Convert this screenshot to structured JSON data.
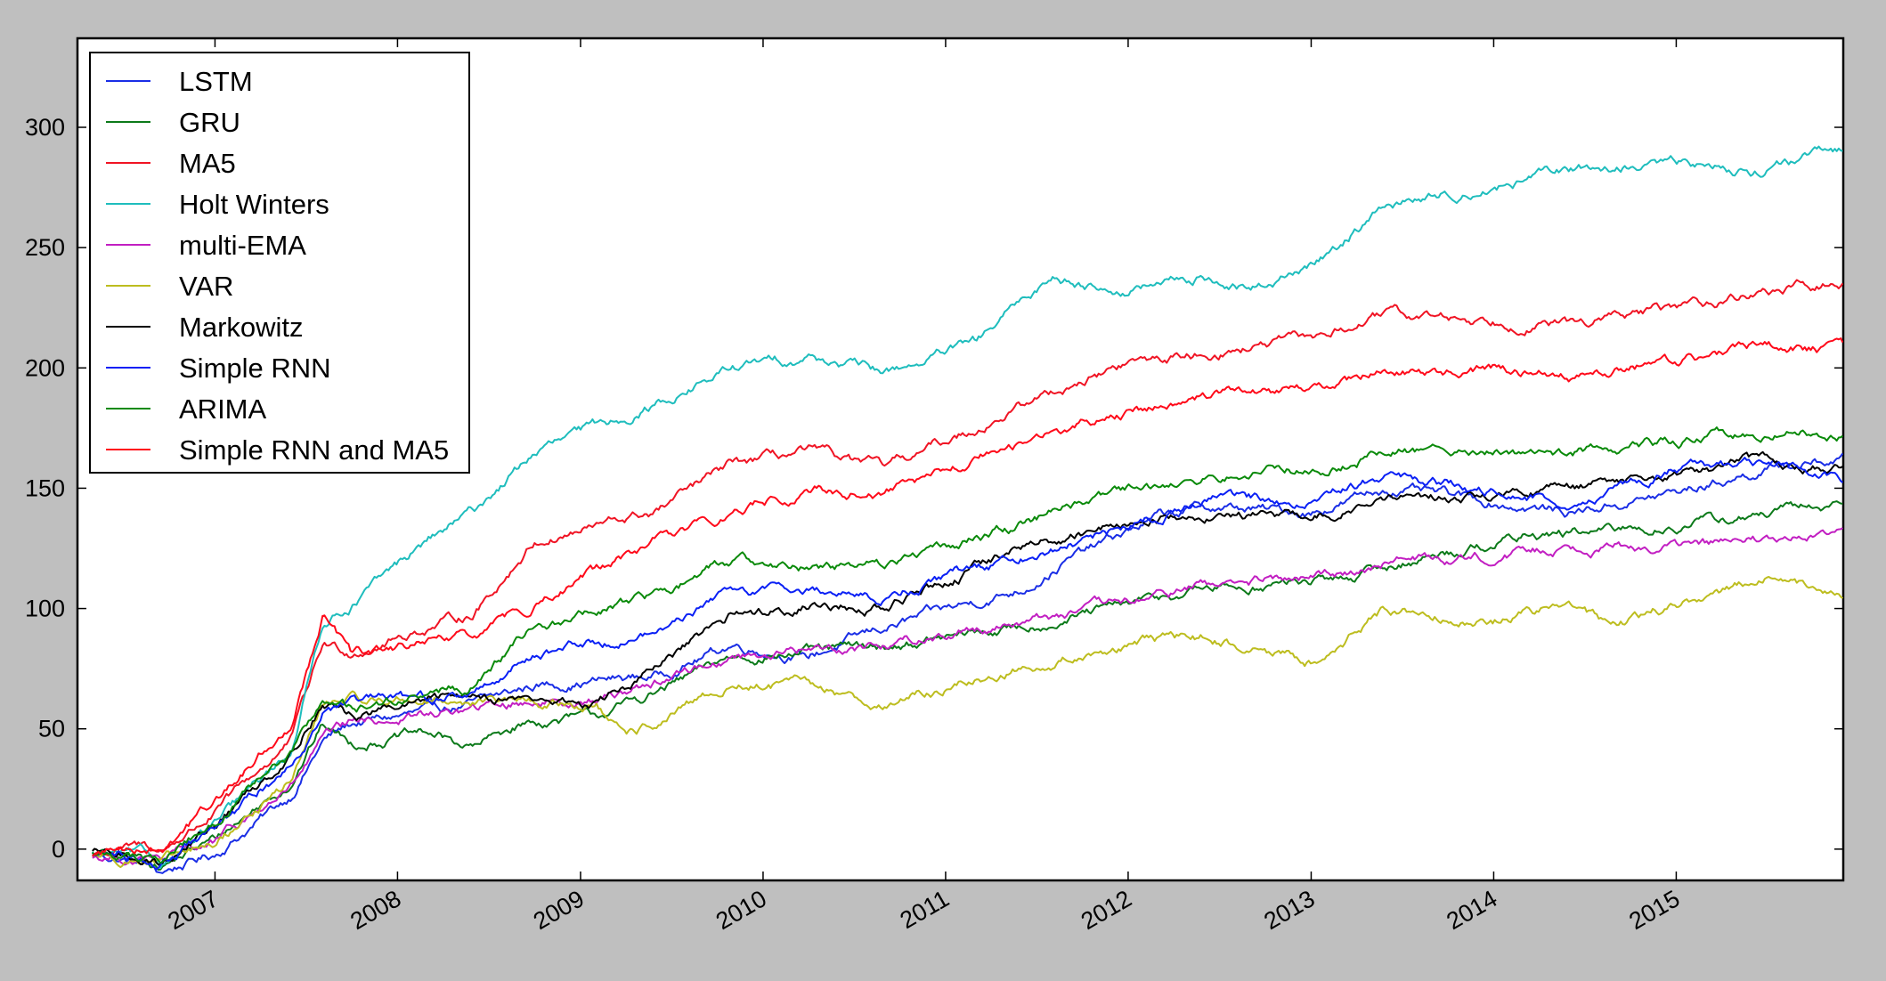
{
  "chart_data": {
    "type": "line",
    "title": "",
    "xlabel": "",
    "ylabel": "",
    "xlim": [
      "2006-04-01",
      "2015-12-01"
    ],
    "ylim": [
      -13,
      337
    ],
    "yticks": [
      0,
      50,
      100,
      150,
      200,
      250,
      300
    ],
    "xticks": [
      "2007",
      "2008",
      "2009",
      "2010",
      "2011",
      "2012",
      "2013",
      "2014",
      "2015"
    ],
    "grid": false,
    "legend_position": "top-left",
    "series": [
      {
        "name": "LSTM",
        "color": "#1a2ee6",
        "x": [
          "2006-05-01",
          "2006-08-15",
          "2006-09-10",
          "2007-01-01",
          "2007-06-01",
          "2007-08-05",
          "2007-10-01",
          "2008-06-01",
          "2008-10-01",
          "2009-06-01",
          "2009-11-01",
          "2010-04-01",
          "2010-09-01",
          "2011-06-01",
          "2011-09-01",
          "2012-03-01",
          "2012-06-01",
          "2013-01-01",
          "2013-06-01",
          "2014-01-01",
          "2014-06-01",
          "2015-01-01",
          "2015-07-01",
          "2015-12-01"
        ],
        "y": [
          -2,
          -6,
          -10,
          -2,
          22,
          45,
          52,
          60,
          68,
          72,
          85,
          80,
          92,
          108,
          120,
          138,
          142,
          140,
          150,
          144,
          140,
          148,
          158,
          162
        ]
      },
      {
        "name": "GRU",
        "color": "#0c7a1a",
        "x": [
          "2006-05-01",
          "2006-08-15",
          "2006-09-15",
          "2007-01-01",
          "2007-06-01",
          "2007-08-05",
          "2007-10-01",
          "2008-03-01",
          "2008-06-01",
          "2008-09-01",
          "2009-02-01",
          "2009-06-01",
          "2009-11-01",
          "2010-04-01",
          "2010-09-01",
          "2011-06-01",
          "2011-12-01",
          "2012-06-01",
          "2013-03-01",
          "2013-09-01",
          "2014-03-01",
          "2014-09-01",
          "2015-06-01",
          "2015-12-01"
        ],
        "y": [
          -2,
          -4,
          -7,
          4,
          28,
          52,
          44,
          48,
          42,
          52,
          55,
          65,
          80,
          82,
          84,
          92,
          100,
          108,
          112,
          122,
          130,
          132,
          138,
          144
        ]
      },
      {
        "name": "MA5",
        "color": "#f01424",
        "x": [
          "2006-05-01",
          "2006-08-15",
          "2006-09-15",
          "2007-01-01",
          "2007-06-01",
          "2007-08-05",
          "2007-10-01",
          "2008-03-01",
          "2008-06-01",
          "2008-10-01",
          "2009-06-01",
          "2009-11-01",
          "2010-04-01",
          "2010-09-01",
          "2011-03-01",
          "2011-08-01",
          "2012-01-01",
          "2012-06-01",
          "2013-01-01",
          "2013-06-01",
          "2014-01-01",
          "2014-06-01",
          "2015-01-01",
          "2015-07-01",
          "2015-12-01"
        ],
        "y": [
          -2,
          1,
          -1,
          15,
          45,
          85,
          82,
          92,
          98,
          128,
          140,
          160,
          165,
          158,
          175,
          190,
          202,
          206,
          212,
          222,
          220,
          218,
          225,
          232,
          235
        ]
      },
      {
        "name": "Holt Winters",
        "color": "#1fbdbd",
        "x": [
          "2006-05-01",
          "2006-08-15",
          "2006-09-15",
          "2007-01-01",
          "2007-06-01",
          "2007-08-05",
          "2007-10-01",
          "2008-03-01",
          "2008-06-01",
          "2008-10-01",
          "2009-06-01",
          "2009-11-01",
          "2010-04-01",
          "2010-09-01",
          "2011-03-01",
          "2011-08-01",
          "2012-01-01",
          "2012-06-01",
          "2012-09-01",
          "2013-01-01",
          "2013-06-01",
          "2014-01-01",
          "2014-06-01",
          "2015-01-01",
          "2015-06-01",
          "2015-12-01"
        ],
        "y": [
          -2,
          -3,
          -6,
          10,
          40,
          95,
          102,
          128,
          140,
          165,
          185,
          200,
          205,
          198,
          210,
          238,
          232,
          238,
          232,
          242,
          268,
          275,
          282,
          285,
          282,
          290
        ]
      },
      {
        "name": "multi-EMA",
        "color": "#c21fc2",
        "x": [
          "2006-05-01",
          "2006-08-15",
          "2006-09-15",
          "2007-01-01",
          "2007-06-01",
          "2007-08-05",
          "2007-10-01",
          "2008-06-01",
          "2008-10-01",
          "2009-02-01",
          "2009-06-01",
          "2009-11-01",
          "2010-04-01",
          "2010-09-01",
          "2011-06-01",
          "2012-01-01",
          "2012-06-01",
          "2013-01-01",
          "2013-06-01",
          "2014-01-01",
          "2014-06-01",
          "2015-01-01",
          "2015-07-01",
          "2015-12-01"
        ],
        "y": [
          -3,
          -4,
          -5,
          3,
          25,
          45,
          52,
          58,
          62,
          62,
          70,
          80,
          83,
          85,
          95,
          102,
          110,
          112,
          120,
          122,
          126,
          126,
          128,
          130
        ]
      },
      {
        "name": "VAR",
        "color": "#bdbd1f",
        "x": [
          "2006-05-01",
          "2006-08-15",
          "2006-09-15",
          "2007-01-01",
          "2007-06-01",
          "2007-08-05",
          "2007-10-01",
          "2008-06-01",
          "2008-10-01",
          "2009-02-01",
          "2009-04-01",
          "2009-06-01",
          "2009-11-01",
          "2010-04-01",
          "2010-09-01",
          "2011-06-01",
          "2012-01-01",
          "2012-06-01",
          "2013-01-01",
          "2013-06-01",
          "2014-01-01",
          "2014-06-01",
          "2014-09-01",
          "2015-01-01",
          "2015-07-01",
          "2015-12-01"
        ],
        "y": [
          -2,
          -4,
          -6,
          2,
          28,
          60,
          62,
          62,
          60,
          60,
          45,
          52,
          68,
          68,
          60,
          75,
          85,
          88,
          78,
          100,
          95,
          102,
          92,
          102,
          112,
          106
        ]
      },
      {
        "name": "Markowitz",
        "color": "#000000",
        "x": [
          "2006-05-01",
          "2006-08-15",
          "2006-09-15",
          "2007-01-01",
          "2007-06-01",
          "2007-08-05",
          "2007-10-01",
          "2008-06-01",
          "2008-10-01",
          "2009-02-01",
          "2009-06-01",
          "2009-11-01",
          "2010-04-01",
          "2010-09-01",
          "2011-06-01",
          "2011-12-01",
          "2012-06-01",
          "2013-01-01",
          "2013-06-01",
          "2014-01-01",
          "2014-06-01",
          "2015-01-01",
          "2015-07-01",
          "2015-12-01"
        ],
        "y": [
          -2,
          -3,
          -6,
          10,
          40,
          62,
          55,
          65,
          62,
          60,
          75,
          97,
          102,
          100,
          125,
          135,
          140,
          138,
          145,
          147,
          150,
          155,
          162,
          158
        ]
      },
      {
        "name": "Simple RNN",
        "color": "#0a20f5",
        "x": [
          "2006-05-01",
          "2006-08-15",
          "2006-09-15",
          "2007-01-01",
          "2007-06-01",
          "2007-08-05",
          "2007-10-01",
          "2008-06-01",
          "2008-10-01",
          "2009-06-01",
          "2009-11-01",
          "2010-04-01",
          "2010-09-01",
          "2011-06-01",
          "2011-12-01",
          "2012-06-01",
          "2013-01-01",
          "2013-06-01",
          "2014-01-01",
          "2014-06-01",
          "2015-01-01",
          "2015-07-01",
          "2015-12-01"
        ],
        "y": [
          -2,
          -3,
          -6,
          8,
          35,
          58,
          60,
          65,
          82,
          90,
          108,
          108,
          105,
          122,
          132,
          145,
          145,
          155,
          148,
          145,
          158,
          160,
          155
        ]
      },
      {
        "name": "ARIMA",
        "color": "#0a8a0a",
        "x": [
          "2006-05-01",
          "2006-08-15",
          "2006-09-15",
          "2007-01-01",
          "2007-06-01",
          "2007-08-05",
          "2007-10-01",
          "2008-06-01",
          "2008-10-01",
          "2009-06-01",
          "2009-11-01",
          "2010-04-01",
          "2010-09-01",
          "2011-06-01",
          "2011-12-01",
          "2012-06-01",
          "2013-01-01",
          "2013-06-01",
          "2014-01-01",
          "2014-06-01",
          "2015-01-01",
          "2015-07-01",
          "2015-12-01"
        ],
        "y": [
          -2,
          -3,
          -5,
          12,
          38,
          62,
          58,
          68,
          92,
          105,
          120,
          118,
          118,
          135,
          148,
          155,
          158,
          165,
          165,
          165,
          170,
          174,
          173
        ]
      },
      {
        "name": "Simple RNN and MA5",
        "color": "#ff0a1a",
        "x": [
          "2006-05-01",
          "2006-08-15",
          "2006-09-15",
          "2007-01-01",
          "2007-06-01",
          "2007-08-05",
          "2007-10-01",
          "2008-06-01",
          "2008-10-01",
          "2009-06-01",
          "2009-11-01",
          "2010-04-01",
          "2010-09-01",
          "2011-06-01",
          "2011-12-01",
          "2012-06-01",
          "2013-01-01",
          "2013-06-01",
          "2014-01-01",
          "2014-06-01",
          "2015-01-01",
          "2015-07-01",
          "2015-12-01"
        ],
        "y": [
          -2,
          2,
          0,
          20,
          52,
          98,
          80,
          88,
          102,
          128,
          140,
          150,
          148,
          168,
          180,
          188,
          190,
          198,
          200,
          196,
          203,
          210,
          207
        ]
      }
    ]
  }
}
